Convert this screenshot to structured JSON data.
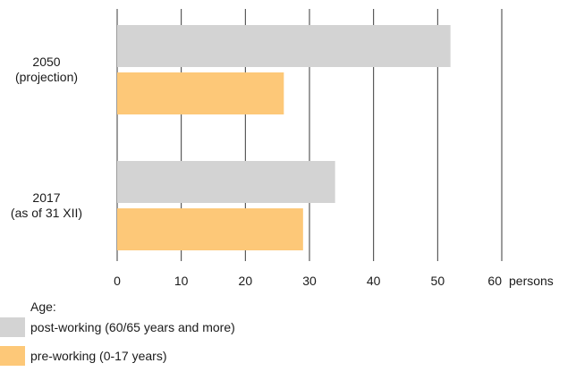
{
  "chart_data": {
    "type": "bar",
    "orientation": "horizontal",
    "categories": [
      [
        "2050",
        "(projection)"
      ],
      [
        "2017",
        "(as of 31 XII)"
      ]
    ],
    "series": [
      {
        "name": "post-working (60/65 years and more)",
        "color": "#d3d3d3",
        "values": [
          52,
          34
        ]
      },
      {
        "name": "pre-working (0-17 years)",
        "color": "#fdc878",
        "values": [
          26,
          29
        ]
      }
    ],
    "x_ticks": [
      0,
      10,
      20,
      30,
      40,
      50,
      60
    ],
    "xlim": [
      0,
      60
    ],
    "x_unit": "persons",
    "grid": true,
    "legend_title": "Age:",
    "legend_position": "bottom-left"
  },
  "legend": {
    "title": "Age:",
    "items": [
      {
        "label": "post-working (60/65 years and more)",
        "color": "#d3d3d3"
      },
      {
        "label": "pre-working (0-17 years)",
        "color": "#fdc878"
      }
    ]
  }
}
